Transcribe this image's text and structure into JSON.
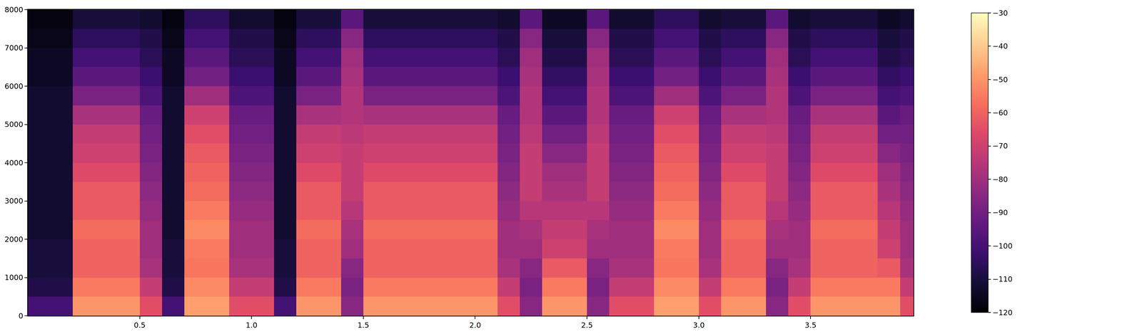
{
  "chart_data": {
    "type": "heatmap",
    "color": "magma",
    "x": [
      0.05,
      0.15,
      0.25,
      0.35,
      0.45,
      0.55,
      0.65,
      0.75,
      0.85,
      0.95,
      1.05,
      1.15,
      1.25,
      1.35,
      1.45,
      1.55,
      1.65,
      1.75,
      1.85,
      1.95,
      2.05,
      2.15,
      2.25,
      2.35,
      2.45,
      2.55,
      2.65,
      2.75,
      2.85,
      2.95,
      3.05,
      3.15,
      3.25,
      3.35,
      3.45,
      3.55,
      3.65,
      3.75,
      3.85,
      3.95
    ],
    "y": [
      250,
      750,
      1250,
      1750,
      2250,
      2750,
      3250,
      3750,
      4250,
      4750,
      5250,
      5750,
      6250,
      6750,
      7250,
      7750
    ],
    "z": [
      [
        -100,
        -100,
        -50,
        -50,
        -50,
        -65,
        -100,
        -48,
        -48,
        -65,
        -65,
        -100,
        -50,
        -50,
        -85,
        -50,
        -50,
        -50,
        -50,
        -50,
        -50,
        -65,
        -85,
        -50,
        -50,
        -85,
        -65,
        -65,
        -48,
        -48,
        -65,
        -50,
        -50,
        -85,
        -65,
        -50,
        -50,
        -50,
        -50,
        -65
      ],
      [
        -108,
        -108,
        -55,
        -55,
        -55,
        -72,
        -108,
        -52,
        -52,
        -72,
        -72,
        -108,
        -55,
        -55,
        -88,
        -55,
        -55,
        -55,
        -55,
        -55,
        -55,
        -72,
        -88,
        -55,
        -55,
        -88,
        -72,
        -72,
        -52,
        -52,
        -72,
        -55,
        -55,
        -88,
        -72,
        -55,
        -55,
        -55,
        -55,
        -72
      ],
      [
        -110,
        -110,
        -60,
        -60,
        -60,
        -78,
        -110,
        -56,
        -56,
        -78,
        -78,
        -110,
        -60,
        -60,
        -85,
        -60,
        -60,
        -60,
        -60,
        -60,
        -60,
        -78,
        -85,
        -62,
        -62,
        -85,
        -78,
        -78,
        -56,
        -56,
        -78,
        -60,
        -60,
        -85,
        -78,
        -60,
        -60,
        -60,
        -62,
        -78
      ],
      [
        -110,
        -110,
        -60,
        -60,
        -60,
        -80,
        -110,
        -55,
        -55,
        -80,
        -80,
        -110,
        -60,
        -60,
        -80,
        -60,
        -60,
        -60,
        -60,
        -60,
        -60,
        -80,
        -80,
        -70,
        -70,
        -80,
        -80,
        -80,
        -55,
        -55,
        -80,
        -60,
        -60,
        -80,
        -80,
        -60,
        -60,
        -60,
        -70,
        -80
      ],
      [
        -112,
        -112,
        -58,
        -58,
        -58,
        -80,
        -112,
        -52,
        -52,
        -80,
        -80,
        -112,
        -58,
        -58,
        -78,
        -58,
        -58,
        -58,
        -58,
        -58,
        -58,
        -80,
        -78,
        -72,
        -72,
        -78,
        -80,
        -80,
        -52,
        -52,
        -80,
        -58,
        -58,
        -78,
        -80,
        -58,
        -58,
        -58,
        -72,
        -80
      ],
      [
        -112,
        -112,
        -62,
        -62,
        -62,
        -82,
        -112,
        -55,
        -55,
        -82,
        -82,
        -112,
        -62,
        -62,
        -75,
        -62,
        -62,
        -62,
        -62,
        -62,
        -62,
        -82,
        -75,
        -75,
        -75,
        -75,
        -82,
        -82,
        -55,
        -55,
        -82,
        -62,
        -62,
        -75,
        -82,
        -62,
        -62,
        -62,
        -75,
        -82
      ],
      [
        -112,
        -112,
        -62,
        -62,
        -62,
        -84,
        -112,
        -58,
        -58,
        -84,
        -84,
        -112,
        -62,
        -62,
        -72,
        -62,
        -62,
        -62,
        -62,
        -62,
        -62,
        -84,
        -72,
        -78,
        -78,
        -72,
        -84,
        -84,
        -58,
        -58,
        -84,
        -62,
        -62,
        -72,
        -84,
        -62,
        -62,
        -62,
        -78,
        -84
      ],
      [
        -112,
        -112,
        -66,
        -66,
        -66,
        -86,
        -112,
        -60,
        -60,
        -86,
        -86,
        -112,
        -66,
        -66,
        -72,
        -66,
        -66,
        -66,
        -66,
        -66,
        -66,
        -86,
        -72,
        -80,
        -80,
        -72,
        -86,
        -86,
        -60,
        -60,
        -86,
        -66,
        -66,
        -72,
        -86,
        -66,
        -66,
        -66,
        -80,
        -86
      ],
      [
        -112,
        -112,
        -70,
        -70,
        -70,
        -88,
        -112,
        -62,
        -62,
        -88,
        -88,
        -112,
        -70,
        -70,
        -72,
        -70,
        -70,
        -70,
        -70,
        -70,
        -70,
        -88,
        -72,
        -85,
        -85,
        -72,
        -88,
        -88,
        -62,
        -62,
        -88,
        -70,
        -70,
        -72,
        -88,
        -70,
        -70,
        -70,
        -85,
        -88
      ],
      [
        -112,
        -112,
        -72,
        -72,
        -72,
        -90,
        -112,
        -65,
        -65,
        -90,
        -90,
        -112,
        -72,
        -72,
        -74,
        -72,
        -72,
        -72,
        -72,
        -72,
        -72,
        -90,
        -74,
        -90,
        -90,
        -74,
        -90,
        -90,
        -65,
        -65,
        -90,
        -72,
        -72,
        -74,
        -90,
        -72,
        -72,
        -72,
        -90,
        -90
      ],
      [
        -112,
        -112,
        -78,
        -78,
        -78,
        -92,
        -112,
        -70,
        -70,
        -92,
        -92,
        -112,
        -78,
        -78,
        -76,
        -78,
        -78,
        -78,
        -78,
        -78,
        -78,
        -92,
        -76,
        -95,
        -95,
        -76,
        -92,
        -92,
        -70,
        -70,
        -92,
        -78,
        -78,
        -76,
        -92,
        -78,
        -78,
        -78,
        -95,
        -92
      ],
      [
        -112,
        -112,
        -88,
        -88,
        -88,
        -98,
        -112,
        -80,
        -80,
        -98,
        -98,
        -112,
        -88,
        -88,
        -76,
        -88,
        -88,
        -88,
        -88,
        -88,
        -88,
        -98,
        -76,
        -100,
        -100,
        -76,
        -98,
        -98,
        -80,
        -80,
        -98,
        -88,
        -88,
        -76,
        -98,
        -88,
        -88,
        -88,
        -100,
        -98
      ],
      [
        -114,
        -114,
        -95,
        -95,
        -95,
        -102,
        -114,
        -90,
        -90,
        -102,
        -102,
        -114,
        -95,
        -95,
        -78,
        -95,
        -95,
        -95,
        -95,
        -95,
        -95,
        -102,
        -78,
        -104,
        -104,
        -78,
        -102,
        -102,
        -90,
        -90,
        -102,
        -95,
        -95,
        -78,
        -102,
        -95,
        -95,
        -95,
        -104,
        -102
      ],
      [
        -114,
        -114,
        -100,
        -100,
        -100,
        -106,
        -114,
        -95,
        -95,
        -106,
        -106,
        -114,
        -100,
        -100,
        -80,
        -100,
        -100,
        -100,
        -100,
        -100,
        -100,
        -106,
        -80,
        -108,
        -108,
        -80,
        -106,
        -106,
        -95,
        -95,
        -106,
        -100,
        -100,
        -80,
        -106,
        -100,
        -100,
        -100,
        -108,
        -106
      ],
      [
        -116,
        -116,
        -105,
        -105,
        -105,
        -108,
        -116,
        -100,
        -100,
        -108,
        -108,
        -116,
        -105,
        -105,
        -85,
        -105,
        -105,
        -105,
        -105,
        -105,
        -105,
        -108,
        -85,
        -110,
        -110,
        -85,
        -108,
        -108,
        -100,
        -100,
        -108,
        -105,
        -105,
        -85,
        -108,
        -105,
        -105,
        -105,
        -110,
        -108
      ],
      [
        -118,
        -118,
        -110,
        -110,
        -110,
        -112,
        -118,
        -105,
        -105,
        -112,
        -112,
        -118,
        -110,
        -110,
        -95,
        -110,
        -110,
        -110,
        -110,
        -110,
        -110,
        -112,
        -95,
        -114,
        -114,
        -95,
        -112,
        -112,
        -105,
        -105,
        -112,
        -110,
        -110,
        -95,
        -112,
        -110,
        -110,
        -110,
        -114,
        -112
      ]
    ],
    "xlim": [
      0,
      3.96
    ],
    "xticks": [
      {
        "value": 0.5,
        "label": "0.5"
      },
      {
        "value": 1,
        "label": "1.0"
      },
      {
        "value": 1.5,
        "label": "1.5"
      },
      {
        "value": 2,
        "label": "2.0"
      },
      {
        "value": 2.5,
        "label": "2.5"
      },
      {
        "value": 3,
        "label": "3.0"
      },
      {
        "value": 3.5,
        "label": "3.5"
      }
    ],
    "ylim": [
      0,
      8000
    ],
    "yticks": [
      0,
      1000,
      2000,
      3000,
      4000,
      5000,
      6000,
      7000,
      8000
    ],
    "colorbar_range": [
      -120,
      -30
    ],
    "colorbar_ticks": [
      {
        "value": -30,
        "label": "−30"
      },
      {
        "value": -40,
        "label": "−40"
      },
      {
        "value": -50,
        "label": "−50"
      },
      {
        "value": -60,
        "label": "−60"
      },
      {
        "value": -70,
        "label": "−70"
      },
      {
        "value": -80,
        "label": "−80"
      },
      {
        "value": -90,
        "label": "−90"
      },
      {
        "value": -100,
        "label": "−100"
      },
      {
        "value": -110,
        "label": "−110"
      },
      {
        "value": -120,
        "label": "−120"
      }
    ],
    "grid": false
  }
}
